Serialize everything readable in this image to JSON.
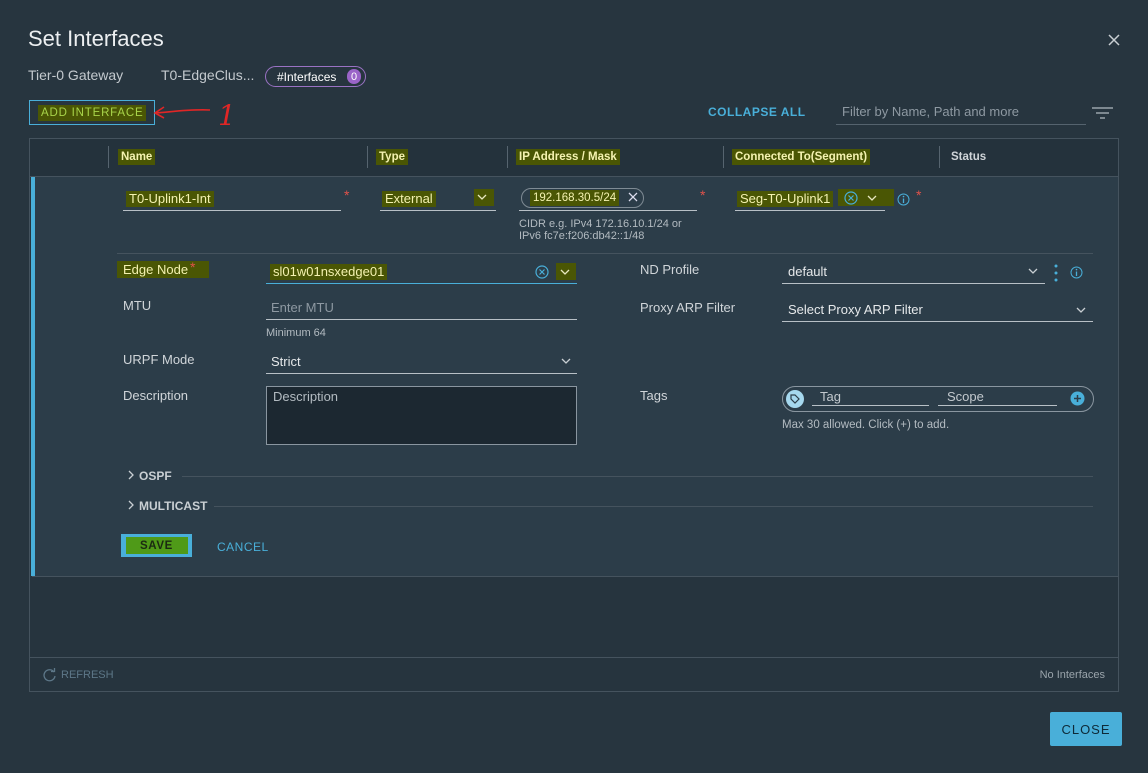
{
  "header": {
    "title": "Set Interfaces",
    "gateway_label": "Tier-0 Gateway",
    "gateway_name": "T0-EdgeClus...",
    "interfaces_label": "#Interfaces",
    "interfaces_count": 0
  },
  "toolbar": {
    "add_interface": "ADD INTERFACE",
    "annotation": "1",
    "collapse_all": "COLLAPSE ALL",
    "filter_placeholder": "Filter by Name, Path and more"
  },
  "table": {
    "columns": [
      "Name",
      "Type",
      "IP Address / Mask",
      "Connected To(Segment)",
      "Status"
    ]
  },
  "form": {
    "required_mark": "*",
    "name": "T0-Uplink1-Int",
    "type": "External",
    "ip_address": "192.168.30.5/24",
    "ip_hint": [
      "CIDR e.g. IPv4 172.16.10.1/24 or",
      "IPv6 fc7e:f206:db42::1/48"
    ],
    "segment": "Seg-T0-Uplink1",
    "edge_node_label": "Edge Node",
    "edge_node": "sl01w01nsxedge01",
    "nd_profile_label": "ND Profile",
    "nd_profile": "default",
    "mtu_label": "MTU",
    "mtu_placeholder": "Enter MTU",
    "mtu_hint": "Minimum 64",
    "proxy_arp_label": "Proxy ARP Filter",
    "proxy_arp_placeholder": "Select Proxy ARP Filter",
    "urpf_label": "URPF Mode",
    "urpf": "Strict",
    "description_label": "Description",
    "description_placeholder": "Description",
    "tags_label": "Tags",
    "tag_placeholder": "Tag",
    "scope_placeholder": "Scope",
    "tags_hint": "Max 30 allowed. Click (+) to add.",
    "sections": [
      "OSPF",
      "MULTICAST"
    ],
    "save": "SAVE",
    "cancel": "CANCEL"
  },
  "footer": {
    "refresh": "REFRESH",
    "status": "No Interfaces",
    "close": "CLOSE"
  }
}
